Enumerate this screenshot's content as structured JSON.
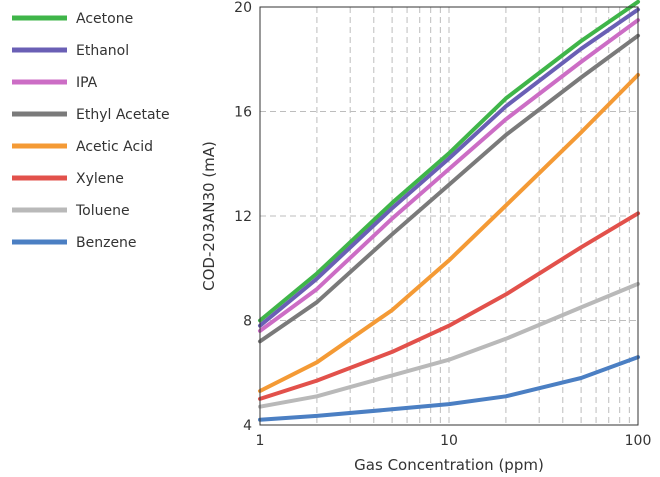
{
  "chart_data": {
    "type": "line",
    "xlabel": "Gas Concentration (ppm)",
    "ylabel": "COD-203AN30 (mA)",
    "xscale": "log",
    "xlim": [
      1,
      100
    ],
    "ylim": [
      4,
      20
    ],
    "xticks": [
      1,
      10,
      100
    ],
    "xtick_labels": [
      "1",
      "10",
      "100"
    ],
    "yticks": [
      4,
      8,
      12,
      16,
      20
    ],
    "ytick_labels": [
      "4",
      "8",
      "12",
      "16",
      "20"
    ],
    "grid": true,
    "legend_position": "left",
    "series": [
      {
        "name": "Acetone",
        "color": "#3fb549",
        "x": [
          1,
          2,
          5,
          10,
          20,
          50,
          100
        ],
        "y": [
          8.0,
          9.8,
          12.5,
          14.4,
          16.5,
          18.7,
          20.2
        ]
      },
      {
        "name": "Ethanol",
        "color": "#6a5fb5",
        "x": [
          1,
          2,
          5,
          10,
          20,
          50,
          100
        ],
        "y": [
          7.8,
          9.6,
          12.3,
          14.2,
          16.2,
          18.4,
          19.9
        ]
      },
      {
        "name": "IPA",
        "color": "#cc6dc5",
        "x": [
          1,
          2,
          5,
          10,
          20,
          50,
          100
        ],
        "y": [
          7.6,
          9.2,
          11.9,
          13.8,
          15.7,
          17.9,
          19.5
        ]
      },
      {
        "name": "Ethyl Acetate",
        "color": "#7a7a7a",
        "x": [
          1,
          2,
          5,
          10,
          20,
          50,
          100
        ],
        "y": [
          7.2,
          8.7,
          11.3,
          13.2,
          15.1,
          17.3,
          18.9
        ]
      },
      {
        "name": "Acetic Acid",
        "color": "#f49a35",
        "x": [
          1,
          2,
          5,
          10,
          20,
          50,
          100
        ],
        "y": [
          5.3,
          6.4,
          8.4,
          10.3,
          12.4,
          15.2,
          17.4
        ]
      },
      {
        "name": "Xylene",
        "color": "#e2514b",
        "x": [
          1,
          2,
          5,
          10,
          20,
          50,
          100
        ],
        "y": [
          5.0,
          5.7,
          6.8,
          7.8,
          9.0,
          10.8,
          12.1
        ]
      },
      {
        "name": "Toluene",
        "color": "#b9b9b9",
        "x": [
          1,
          2,
          5,
          10,
          20,
          50,
          100
        ],
        "y": [
          4.7,
          5.1,
          5.9,
          6.5,
          7.3,
          8.5,
          9.4
        ]
      },
      {
        "name": "Benzene",
        "color": "#4b7fc3",
        "x": [
          1,
          2,
          5,
          10,
          20,
          50,
          100
        ],
        "y": [
          4.2,
          4.35,
          4.6,
          4.8,
          5.1,
          5.8,
          6.6
        ]
      }
    ]
  }
}
